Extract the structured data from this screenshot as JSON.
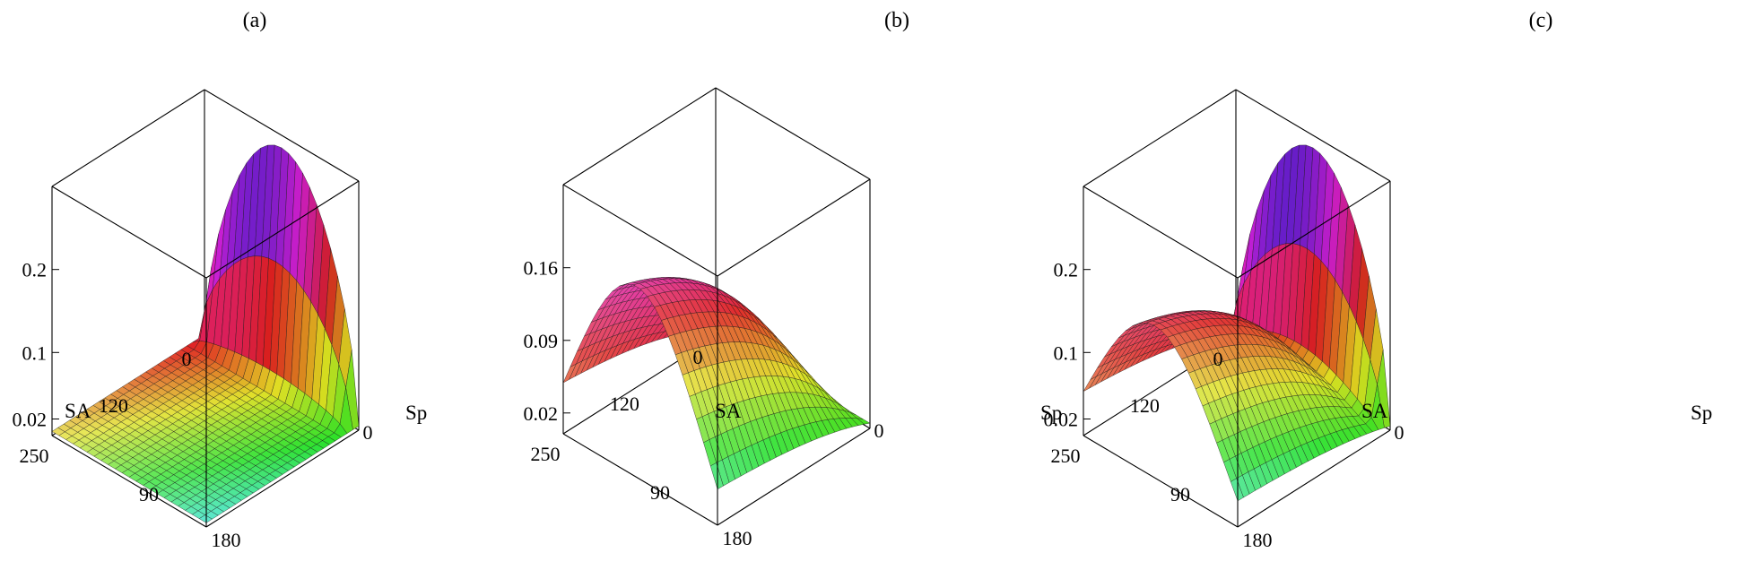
{
  "figure": {
    "panels": [
      {
        "id": "a",
        "title": "(a)"
      },
      {
        "id": "b",
        "title": "(b)"
      },
      {
        "id": "c",
        "title": "(c)"
      }
    ]
  },
  "chart_data": [
    {
      "type": "surface3d",
      "title": "(a)",
      "xlabel": "SA",
      "ylabel": "Sp",
      "zlabel": "",
      "x_range": [
        0,
        250
      ],
      "y_range": [
        0,
        180
      ],
      "x_ticks": [
        "0",
        "120",
        "250"
      ],
      "y_ticks": [
        "0",
        "90",
        "180"
      ],
      "z_ticks": [
        0.02,
        0.1,
        0.2
      ],
      "z_tick_labels": [
        "0.02",
        "0.1",
        "0.2"
      ],
      "z_range": [
        0,
        0.3
      ],
      "surface": {
        "description_of_shape": "ridge near SA=0 rising to about 0.28 at mid Sp, flat near 0.005 elsewhere",
        "ridge_peak_z": 0.28,
        "ridge_at_SA": 0,
        "ridge_width_SA": 12,
        "base_z": 0.005,
        "rise_z": 0,
        "rise_scale_SA": 0,
        "sp_peak": 70
      },
      "colormap": "rainbow",
      "grid": true
    },
    {
      "type": "surface3d",
      "title": "(b)",
      "xlabel": "SA",
      "ylabel": "Sp",
      "zlabel": "",
      "x_range": [
        0,
        250
      ],
      "y_range": [
        0,
        180
      ],
      "x_ticks": [
        "0",
        "120",
        "250"
      ],
      "y_ticks": [
        "0",
        "90",
        "180"
      ],
      "z_ticks": [
        0.02,
        0.09,
        0.16
      ],
      "z_tick_labels": [
        "0.02",
        "0.09",
        "0.16"
      ],
      "z_range": [
        0,
        0.24
      ],
      "surface": {
        "description_of_shape": "smooth rise with SA, arching over Sp, maximum near 0.2",
        "ridge_peak_z": 0,
        "ridge_at_SA": 0,
        "ridge_width_SA": 12,
        "base_z": 0.005,
        "rise_z": 0.205,
        "rise_scale_SA": 120,
        "sp_peak": 80
      },
      "colormap": "rainbow",
      "grid": true
    },
    {
      "type": "surface3d",
      "title": "(c)",
      "xlabel": "SA",
      "ylabel": "Sp",
      "zlabel": "",
      "x_range": [
        0,
        250
      ],
      "y_range": [
        0,
        180
      ],
      "x_ticks": [
        "0",
        "120",
        "250"
      ],
      "y_ticks": [
        "0",
        "90",
        "180"
      ],
      "z_ticks": [
        0.02,
        0.1,
        0.2
      ],
      "z_tick_labels": [
        "0.02",
        "0.1",
        "0.2"
      ],
      "z_range": [
        0,
        0.3
      ],
      "surface": {
        "description_of_shape": "sum of (a) and (b): sharp ridge near SA=0 plus smooth rise with SA",
        "ridge_peak_z": 0.28,
        "ridge_at_SA": 0,
        "ridge_width_SA": 12,
        "base_z": 0.005,
        "rise_z": 0.205,
        "rise_scale_SA": 120,
        "sp_peak": 75
      },
      "colormap": "rainbow",
      "grid": true
    }
  ]
}
